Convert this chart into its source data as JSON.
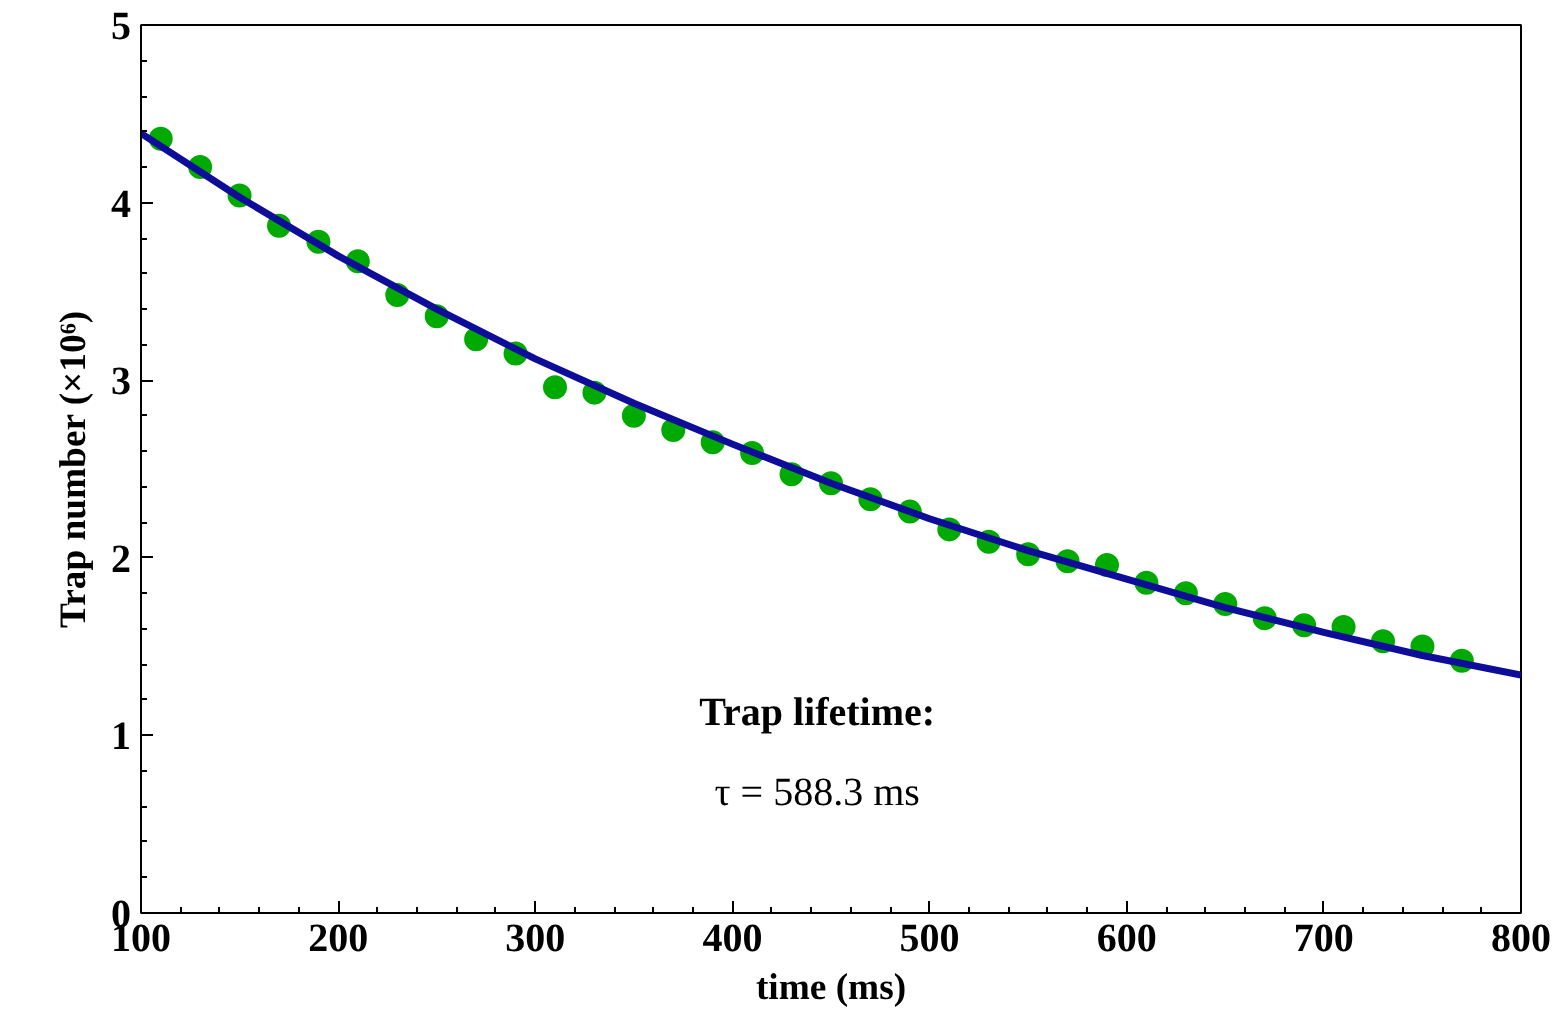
{
  "chart_data": {
    "type": "scatter",
    "xlabel": "time (ms)",
    "ylabel": "Trap number (×10⁶)",
    "xlim": [
      100,
      800
    ],
    "ylim": [
      0,
      5
    ],
    "xticks": [
      100,
      200,
      300,
      400,
      500,
      600,
      700,
      800
    ],
    "yticks": [
      0,
      1,
      2,
      3,
      4,
      5
    ],
    "grid": false,
    "annotations": [
      "Trap lifetime:",
      "τ = 588.3 ms"
    ],
    "series": [
      {
        "marker": "circle",
        "color": "#00aa00",
        "x": [
          110,
          130,
          150,
          170,
          190,
          210,
          230,
          250,
          270,
          290,
          310,
          330,
          350,
          370,
          390,
          410,
          430,
          450,
          470,
          490,
          510,
          530,
          550,
          570,
          590,
          610,
          630,
          650,
          670,
          690,
          710,
          730,
          750,
          770
        ],
        "values": [
          4.36,
          4.2,
          4.04,
          3.87,
          3.78,
          3.67,
          3.48,
          3.36,
          3.23,
          3.15,
          2.96,
          2.93,
          2.8,
          2.72,
          2.65,
          2.59,
          2.47,
          2.42,
          2.33,
          2.26,
          2.16,
          2.09,
          2.02,
          1.98,
          1.96,
          1.86,
          1.8,
          1.74,
          1.66,
          1.62,
          1.61,
          1.53,
          1.5,
          1.42
        ]
      },
      {
        "type": "line",
        "color": "#0d0d99",
        "line_style": "solid",
        "x": [
          100,
          150,
          200,
          250,
          300,
          350,
          400,
          450,
          500,
          550,
          600,
          650,
          700,
          750,
          800
        ],
        "values": [
          4.39,
          4.03,
          3.7,
          3.4,
          3.12,
          2.87,
          2.64,
          2.42,
          2.22,
          2.04,
          1.88,
          1.72,
          1.58,
          1.45,
          1.34
        ]
      }
    ]
  }
}
